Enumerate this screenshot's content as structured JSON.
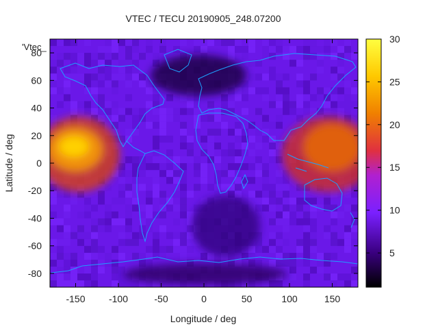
{
  "chart_data": {
    "type": "heatmap",
    "title": "VTEC / TECU 20190905_248.07200",
    "xlabel": "Longitude / deg",
    "ylabel": "Latitude / deg",
    "xlim": [
      -180,
      180
    ],
    "ylim": [
      -90,
      90
    ],
    "x_ticks": [
      -150,
      -100,
      -50,
      0,
      50,
      100,
      150
    ],
    "y_ticks": [
      -80,
      -60,
      -40,
      -20,
      0,
      20,
      40,
      60,
      80
    ],
    "colorbar": {
      "range": [
        1,
        30
      ],
      "ticks": [
        5,
        10,
        15,
        20,
        25,
        30
      ],
      "stops": [
        "#000000",
        "#3a0080",
        "#7a20ff",
        "#c020c0",
        "#e03040",
        "#f08000",
        "#ffe000",
        "#ffff40"
      ]
    },
    "key_label": "'Vtec_",
    "grid": false,
    "overlay": "coastlines",
    "overlay_color": "#1ea0ff",
    "features": [
      {
        "lon": -150,
        "lat": 5,
        "value": 29
      },
      {
        "lon": 150,
        "lat": 5,
        "value": 20
      },
      {
        "lon": -20,
        "lat": 70,
        "value": 2
      },
      {
        "lon": 40,
        "lat": -40,
        "value": 3
      },
      {
        "lon": 0,
        "lat": -85,
        "value": 3
      }
    ]
  }
}
